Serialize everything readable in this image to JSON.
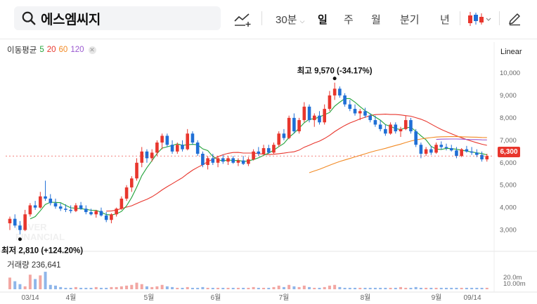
{
  "search": {
    "query": "에스엠씨지"
  },
  "toolbar": {
    "chart_tool_icon": "trend-line-add-icon",
    "interval": "30분",
    "periods": [
      "일",
      "주",
      "월",
      "분기",
      "년"
    ],
    "active_period": "일",
    "chart_type_icon": "candlestick-icon",
    "draw_icon": "pencil-icon"
  },
  "legend": {
    "label": "이동평균",
    "periods": [
      {
        "value": "5",
        "color": "#22a33a"
      },
      {
        "value": "20",
        "color": "#e8362d"
      },
      {
        "value": "60",
        "color": "#f28a24"
      },
      {
        "value": "120",
        "color": "#9b59d0"
      }
    ]
  },
  "volume_legend": "거래량 236,641",
  "scale": "Linear",
  "watermark": "NAVER FINANCIAL",
  "colors": {
    "up": "#e8362d",
    "down": "#1f6fd6",
    "ma5": "#22a33a",
    "ma20": "#e8362d",
    "ma60": "#f28a24",
    "ma120": "#9b59d0"
  },
  "chart_data": {
    "type": "candlestick",
    "price_axis": {
      "ticks": [
        "10,000",
        "9,000",
        "8,000",
        "7,000",
        "6,000",
        "5,000",
        "4,000",
        "3,000"
      ],
      "ylim": [
        2300,
        10500
      ]
    },
    "volume_axis": {
      "ticks": [
        "20.0m",
        "10.00m"
      ]
    },
    "x_labels": [
      "03/14",
      "4월",
      "5월",
      "6월",
      "7월",
      "8월",
      "9월",
      "09/14"
    ],
    "current_price": "6,300",
    "annotations": {
      "high": {
        "label": "최고",
        "value": "9,570",
        "change": "(-34.17%)",
        "price": 9570
      },
      "low": {
        "label": "최저",
        "value": "2,810",
        "change": "(+124.20%)",
        "price": 2810
      }
    },
    "candles": [
      {
        "o": 3300,
        "h": 3600,
        "l": 3000,
        "c": 3500
      },
      {
        "o": 3500,
        "h": 3700,
        "l": 3100,
        "c": 3200
      },
      {
        "o": 3200,
        "h": 3400,
        "l": 2810,
        "c": 3000
      },
      {
        "o": 3000,
        "h": 3900,
        "l": 2950,
        "c": 3700
      },
      {
        "o": 3700,
        "h": 4200,
        "l": 3600,
        "c": 4100
      },
      {
        "o": 4100,
        "h": 4300,
        "l": 3900,
        "c": 4000
      },
      {
        "o": 4000,
        "h": 4700,
        "l": 3950,
        "c": 4500
      },
      {
        "o": 4500,
        "h": 5200,
        "l": 4300,
        "c": 4400
      },
      {
        "o": 4400,
        "h": 4600,
        "l": 4100,
        "c": 4200
      },
      {
        "o": 4200,
        "h": 4400,
        "l": 3950,
        "c": 4050
      },
      {
        "o": 4050,
        "h": 4200,
        "l": 3850,
        "c": 3950
      },
      {
        "o": 3950,
        "h": 4150,
        "l": 3800,
        "c": 3900
      },
      {
        "o": 3900,
        "h": 4100,
        "l": 3750,
        "c": 3850
      },
      {
        "o": 3850,
        "h": 4200,
        "l": 3800,
        "c": 4100
      },
      {
        "o": 4100,
        "h": 4250,
        "l": 3900,
        "c": 3950
      },
      {
        "o": 3950,
        "h": 4100,
        "l": 3700,
        "c": 3800
      },
      {
        "o": 3800,
        "h": 3950,
        "l": 3650,
        "c": 3700
      },
      {
        "o": 3700,
        "h": 3900,
        "l": 3550,
        "c": 3850
      },
      {
        "o": 3850,
        "h": 4000,
        "l": 3600,
        "c": 3650
      },
      {
        "o": 3650,
        "h": 3800,
        "l": 3350,
        "c": 3450
      },
      {
        "o": 3450,
        "h": 3750,
        "l": 3300,
        "c": 3700
      },
      {
        "o": 3700,
        "h": 4000,
        "l": 3600,
        "c": 3950
      },
      {
        "o": 3950,
        "h": 4500,
        "l": 3900,
        "c": 4400
      },
      {
        "o": 4400,
        "h": 5000,
        "l": 4300,
        "c": 4900
      },
      {
        "o": 4900,
        "h": 5400,
        "l": 4700,
        "c": 5300
      },
      {
        "o": 5300,
        "h": 6200,
        "l": 5200,
        "c": 6000
      },
      {
        "o": 6000,
        "h": 6700,
        "l": 5800,
        "c": 6500
      },
      {
        "o": 6500,
        "h": 6600,
        "l": 6000,
        "c": 6200
      },
      {
        "o": 6200,
        "h": 6600,
        "l": 6050,
        "c": 6450
      },
      {
        "o": 6450,
        "h": 7000,
        "l": 6300,
        "c": 6900
      },
      {
        "o": 6900,
        "h": 7300,
        "l": 6600,
        "c": 7200
      },
      {
        "o": 7200,
        "h": 7300,
        "l": 6700,
        "c": 6800
      },
      {
        "o": 6800,
        "h": 7000,
        "l": 6400,
        "c": 6500
      },
      {
        "o": 6500,
        "h": 6900,
        "l": 6400,
        "c": 6800
      },
      {
        "o": 6800,
        "h": 7000,
        "l": 6500,
        "c": 6600
      },
      {
        "o": 6600,
        "h": 7500,
        "l": 6550,
        "c": 7300
      },
      {
        "o": 7300,
        "h": 7400,
        "l": 6800,
        "c": 6900
      },
      {
        "o": 6900,
        "h": 7000,
        "l": 6300,
        "c": 6400
      },
      {
        "o": 6400,
        "h": 6500,
        "l": 5800,
        "c": 5900
      },
      {
        "o": 5900,
        "h": 6300,
        "l": 5700,
        "c": 6200
      },
      {
        "o": 6200,
        "h": 6400,
        "l": 5900,
        "c": 6000
      },
      {
        "o": 6000,
        "h": 6300,
        "l": 5800,
        "c": 6200
      },
      {
        "o": 6200,
        "h": 6350,
        "l": 5950,
        "c": 6050
      },
      {
        "o": 6050,
        "h": 6300,
        "l": 5900,
        "c": 6200
      },
      {
        "o": 6200,
        "h": 6300,
        "l": 5950,
        "c": 6000
      },
      {
        "o": 6000,
        "h": 6200,
        "l": 5850,
        "c": 6100
      },
      {
        "o": 6100,
        "h": 6300,
        "l": 5900,
        "c": 5950
      },
      {
        "o": 5950,
        "h": 6250,
        "l": 5850,
        "c": 6150
      },
      {
        "o": 6150,
        "h": 6600,
        "l": 6100,
        "c": 6500
      },
      {
        "o": 6500,
        "h": 6700,
        "l": 6300,
        "c": 6400
      },
      {
        "o": 6400,
        "h": 6800,
        "l": 6350,
        "c": 6650
      },
      {
        "o": 6650,
        "h": 6800,
        "l": 6400,
        "c": 6450
      },
      {
        "o": 6450,
        "h": 6900,
        "l": 6400,
        "c": 6800
      },
      {
        "o": 6800,
        "h": 7400,
        "l": 6700,
        "c": 7300
      },
      {
        "o": 7300,
        "h": 7500,
        "l": 7000,
        "c": 7100
      },
      {
        "o": 7100,
        "h": 8100,
        "l": 7050,
        "c": 8000
      },
      {
        "o": 8000,
        "h": 8200,
        "l": 7300,
        "c": 7400
      },
      {
        "o": 7400,
        "h": 8000,
        "l": 7300,
        "c": 7900
      },
      {
        "o": 7900,
        "h": 8700,
        "l": 7800,
        "c": 8500
      },
      {
        "o": 8500,
        "h": 8600,
        "l": 7800,
        "c": 7900
      },
      {
        "o": 7900,
        "h": 8200,
        "l": 7600,
        "c": 8100
      },
      {
        "o": 8100,
        "h": 8300,
        "l": 7700,
        "c": 7800
      },
      {
        "o": 7800,
        "h": 8600,
        "l": 7700,
        "c": 8400
      },
      {
        "o": 8400,
        "h": 9200,
        "l": 8300,
        "c": 9000
      },
      {
        "o": 9000,
        "h": 9570,
        "l": 8800,
        "c": 9300
      },
      {
        "o": 9300,
        "h": 9400,
        "l": 8900,
        "c": 9000
      },
      {
        "o": 9000,
        "h": 9100,
        "l": 8500,
        "c": 8600
      },
      {
        "o": 8600,
        "h": 8800,
        "l": 8300,
        "c": 8400
      },
      {
        "o": 8400,
        "h": 8600,
        "l": 8100,
        "c": 8200
      },
      {
        "o": 8200,
        "h": 8400,
        "l": 7900,
        "c": 8300
      },
      {
        "o": 8300,
        "h": 8450,
        "l": 8000,
        "c": 8100
      },
      {
        "o": 8100,
        "h": 8200,
        "l": 7800,
        "c": 7900
      },
      {
        "o": 7900,
        "h": 8100,
        "l": 7600,
        "c": 7700
      },
      {
        "o": 7700,
        "h": 7900,
        "l": 7400,
        "c": 7500
      },
      {
        "o": 7500,
        "h": 7700,
        "l": 7200,
        "c": 7300
      },
      {
        "o": 7300,
        "h": 7800,
        "l": 7250,
        "c": 7700
      },
      {
        "o": 7700,
        "h": 7800,
        "l": 7300,
        "c": 7400
      },
      {
        "o": 7400,
        "h": 7600,
        "l": 7150,
        "c": 7500
      },
      {
        "o": 7500,
        "h": 8100,
        "l": 7450,
        "c": 7900
      },
      {
        "o": 7900,
        "h": 8000,
        "l": 7300,
        "c": 7400
      },
      {
        "o": 7400,
        "h": 7500,
        "l": 6700,
        "c": 6800
      },
      {
        "o": 6800,
        "h": 6900,
        "l": 6200,
        "c": 6400
      },
      {
        "o": 6400,
        "h": 6700,
        "l": 6300,
        "c": 6600
      },
      {
        "o": 6600,
        "h": 6750,
        "l": 6350,
        "c": 6450
      },
      {
        "o": 6450,
        "h": 6900,
        "l": 6400,
        "c": 6800
      },
      {
        "o": 6800,
        "h": 6950,
        "l": 6600,
        "c": 6700
      },
      {
        "o": 6700,
        "h": 6850,
        "l": 6550,
        "c": 6650
      },
      {
        "o": 6650,
        "h": 6800,
        "l": 6500,
        "c": 6550
      },
      {
        "o": 6550,
        "h": 6700,
        "l": 6200,
        "c": 6300
      },
      {
        "o": 6300,
        "h": 6650,
        "l": 6250,
        "c": 6600
      },
      {
        "o": 6600,
        "h": 6750,
        "l": 6450,
        "c": 6500
      },
      {
        "o": 6500,
        "h": 6700,
        "l": 6350,
        "c": 6450
      },
      {
        "o": 6450,
        "h": 6600,
        "l": 6250,
        "c": 6350
      },
      {
        "o": 6350,
        "h": 6500,
        "l": 6050,
        "c": 6150
      },
      {
        "o": 6150,
        "h": 6400,
        "l": 6050,
        "c": 6300
      }
    ],
    "volumes": [
      16,
      11,
      7,
      4,
      20,
      14,
      19,
      24,
      6,
      5,
      3,
      2,
      2,
      3,
      2,
      2,
      2,
      3,
      2,
      2,
      3,
      3,
      4,
      5,
      6,
      9,
      7,
      4,
      3,
      4,
      6,
      4,
      3,
      2,
      2,
      3,
      2,
      2,
      3,
      2,
      2,
      2,
      2,
      2,
      2,
      2,
      2,
      2,
      3,
      2,
      2,
      2,
      3,
      5,
      3,
      6,
      4,
      3,
      5,
      3,
      2,
      2,
      3,
      5,
      6,
      3,
      2,
      2,
      2,
      2,
      2,
      2,
      2,
      2,
      2,
      2,
      2,
      3,
      2,
      2,
      3,
      2,
      2,
      2,
      2,
      2,
      2,
      2,
      2,
      2,
      2,
      2,
      2,
      2,
      2
    ]
  }
}
